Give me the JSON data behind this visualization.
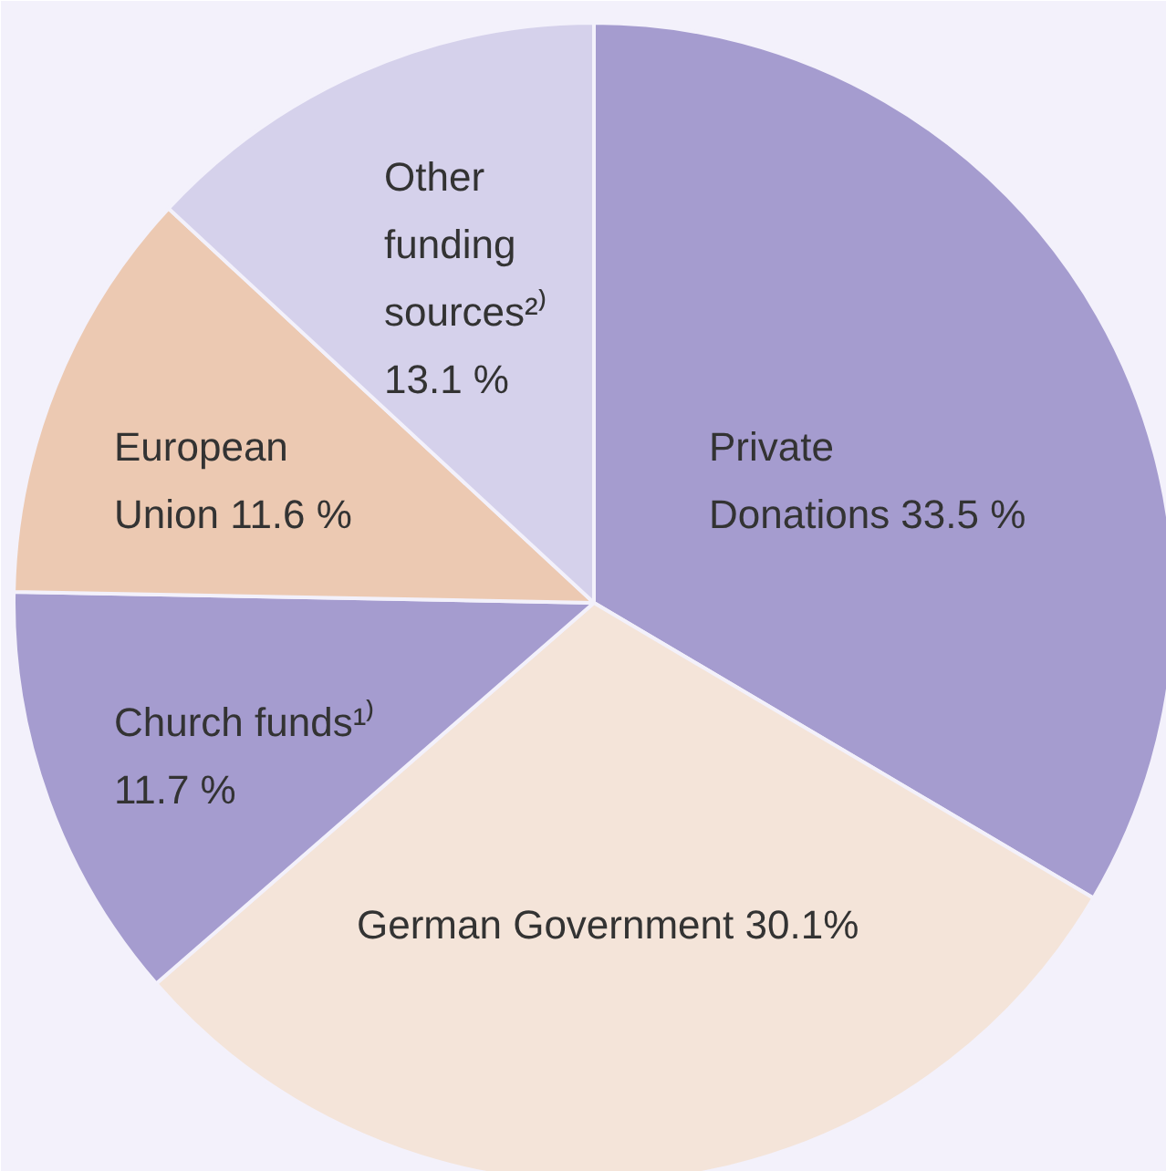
{
  "chart_data": {
    "type": "pie",
    "categories": [
      "Private Donations",
      "German Government",
      "Church funds¹⁾",
      "European Union",
      "Other funding sources²⁾"
    ],
    "values": [
      33.5,
      30.1,
      11.7,
      11.6,
      13.1
    ],
    "colors": [
      "#a59ccf",
      "#f4e4d9",
      "#a59ccf",
      "#ecc9b2",
      "#d5d1eb"
    ],
    "value_labels": [
      "33.5 %",
      "30.1%",
      "11.7 %",
      "11.6 %",
      "13.1 %"
    ]
  }
}
